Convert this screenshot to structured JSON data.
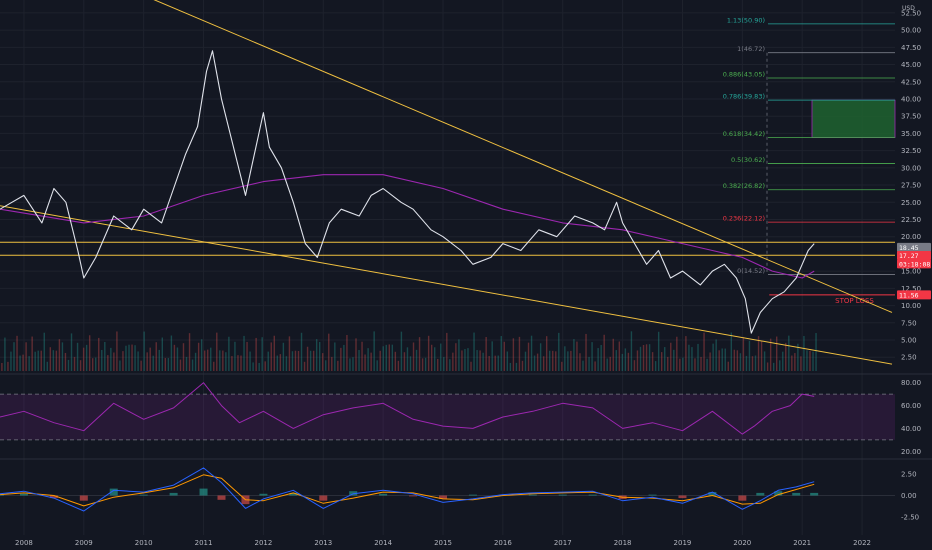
{
  "chart_data": [
    {
      "type": "line",
      "panel": "price",
      "y_unit": "USD",
      "x_ticks": [
        "2008",
        "2009",
        "2010",
        "2011",
        "2012",
        "2013",
        "2014",
        "2015",
        "2016",
        "2017",
        "2018",
        "2019",
        "2020",
        "2021",
        "2022"
      ],
      "y_ticks": [
        "52.50",
        "50.00",
        "47.50",
        "45.00",
        "42.50",
        "40.00",
        "37.50",
        "35.00",
        "32.50",
        "30.00",
        "27.50",
        "25.00",
        "22.50",
        "20.00",
        "15.00",
        "12.50",
        "10.00",
        "7.50",
        "5.00",
        "2.50"
      ],
      "ylim": [
        0.5,
        53.5
      ],
      "series": [
        {
          "values_x": [
            2007.6,
            2008.0,
            2008.3,
            2008.5,
            2008.7,
            2008.9,
            2009.0,
            2009.2,
            2009.5,
            2009.8,
            2010.0,
            2010.3,
            2010.5,
            2010.7,
            2010.9,
            2011.05,
            2011.15,
            2011.3,
            2011.5,
            2011.7,
            2011.8,
            2012.0,
            2012.1,
            2012.3,
            2012.5,
            2012.7,
            2012.9,
            2013.1,
            2013.3,
            2013.6,
            2013.8,
            2014.0,
            2014.3,
            2014.5,
            2014.8,
            2015.0,
            2015.3,
            2015.5,
            2015.8,
            2016.0,
            2016.3,
            2016.6,
            2016.9,
            2017.2,
            2017.5,
            2017.7,
            2017.9,
            2018.0,
            2018.2,
            2018.4,
            2018.6,
            2018.8,
            2019.0,
            2019.3,
            2019.5,
            2019.7,
            2019.9,
            2020.05,
            2020.15,
            2020.3,
            2020.5,
            2020.7,
            2020.9,
            2021.0,
            2021.1,
            2021.2
          ],
          "values_y": [
            24,
            26,
            22,
            27,
            25,
            18,
            14,
            17,
            23,
            21,
            24,
            22,
            27,
            32,
            36,
            44,
            47,
            40,
            33,
            26,
            30,
            38,
            33,
            30,
            25,
            19,
            17,
            22,
            24,
            23,
            26,
            27,
            25,
            24,
            21,
            20,
            18,
            16,
            17,
            19,
            18,
            21,
            20,
            23,
            22,
            21,
            25,
            22,
            19,
            16,
            18,
            14,
            15,
            13,
            15,
            16,
            14,
            11,
            6,
            9,
            11,
            12,
            14,
            16,
            18,
            19
          ]
        },
        {
          "name": "MA200 (purple)",
          "values_x": [
            2007.6,
            2009.0,
            2010.0,
            2011.0,
            2012.0,
            2013.0,
            2014.0,
            2015.0,
            2016.0,
            2017.0,
            2018.0,
            2019.0,
            2019.5,
            2020.0,
            2020.5,
            2021.0,
            2021.2
          ],
          "values_y": [
            24,
            22,
            23,
            26,
            28,
            29,
            29,
            27,
            24,
            22,
            21,
            19,
            18,
            17,
            15,
            14,
            15
          ]
        }
      ],
      "trendlines": [
        {
          "from": [
            2009.2,
            58
          ],
          "to": [
            2022.5,
            9
          ]
        },
        {
          "from": [
            2007.6,
            24.5
          ],
          "to": [
            2022.5,
            1.5
          ]
        }
      ],
      "horizontal_lines": [
        19.2,
        17.3
      ],
      "fibonacci": [
        {
          "label": "1.13(50.90)",
          "value": 50.9,
          "color": "#26a69a"
        },
        {
          "label": "1(46.72)",
          "value": 46.72,
          "color": "#787b86"
        },
        {
          "label": "0.886(43.05)",
          "value": 43.05,
          "color": "#4caf50"
        },
        {
          "label": "0.786(39.83)",
          "value": 39.83,
          "color": "#26a69a"
        },
        {
          "label": "0.618(34.42)",
          "value": 34.42,
          "color": "#4caf50"
        },
        {
          "label": "0.5(30.62)",
          "value": 30.62,
          "color": "#4caf50"
        },
        {
          "label": "0.382(26.82)",
          "value": 26.82,
          "color": "#4caf50"
        },
        {
          "label": "0.236(22.12)",
          "value": 22.12,
          "color": "#f23645"
        },
        {
          "label": "0(14.52)",
          "value": 14.52,
          "color": "#787b86"
        }
      ],
      "target_zone": {
        "from": 34.42,
        "to": 39.83,
        "color": "#1e5e2f"
      },
      "stop_loss": {
        "label": "STOP LOSS",
        "value": 11.56,
        "color": "#f23645"
      },
      "price_tags": [
        {
          "label": "18.45",
          "value": 18.45,
          "color": "#787b86"
        },
        {
          "label": "17.27",
          "value": 17.27,
          "color": "#f23645"
        },
        {
          "label": "03:18:08",
          "value": 16.05,
          "color": "#f23645"
        },
        {
          "label": "11.56",
          "value": 11.56,
          "color": "#f23645"
        }
      ]
    },
    {
      "type": "line",
      "panel": "rsi",
      "y_ticks": [
        "80.00",
        "60.00",
        "40.00",
        "20.00"
      ],
      "ylim": [
        15,
        85
      ],
      "band": [
        30,
        70
      ],
      "series": [
        {
          "name": "RSI",
          "values_x": [
            2007.6,
            2008.0,
            2008.5,
            2009.0,
            2009.5,
            2010.0,
            2010.5,
            2011.0,
            2011.3,
            2011.6,
            2012.0,
            2012.5,
            2013.0,
            2013.5,
            2014.0,
            2014.5,
            2015.0,
            2015.5,
            2016.0,
            2016.5,
            2017.0,
            2017.5,
            2018.0,
            2018.5,
            2019.0,
            2019.5,
            2020.0,
            2020.2,
            2020.5,
            2020.8,
            2021.0,
            2021.2
          ],
          "values_y": [
            50,
            55,
            45,
            38,
            62,
            48,
            58,
            80,
            60,
            45,
            55,
            40,
            52,
            58,
            62,
            48,
            42,
            40,
            50,
            55,
            62,
            58,
            40,
            45,
            38,
            55,
            35,
            42,
            55,
            60,
            70,
            68
          ]
        }
      ]
    },
    {
      "type": "line",
      "panel": "macd",
      "y_ticks": [
        "2.50",
        "0.00",
        "-2.50"
      ],
      "ylim": [
        -4,
        4
      ],
      "series": [
        {
          "name": "MACD",
          "values_x": [
            2007.6,
            2008.0,
            2008.5,
            2009.0,
            2009.5,
            2010.0,
            2010.5,
            2011.0,
            2011.3,
            2011.7,
            2012.0,
            2012.5,
            2013.0,
            2013.5,
            2014.0,
            2014.5,
            2015.0,
            2015.5,
            2016.0,
            2016.5,
            2017.0,
            2017.5,
            2018.0,
            2018.5,
            2019.0,
            2019.5,
            2020.0,
            2020.3,
            2020.6,
            2020.9,
            2021.2
          ],
          "values_y": [
            0.2,
            0.5,
            -0.3,
            -1.8,
            0.6,
            0.4,
            1.2,
            3.2,
            1.5,
            -1.5,
            -0.4,
            0.6,
            -1.5,
            0.2,
            0.6,
            0.2,
            -0.8,
            -0.4,
            0.1,
            0.3,
            0.4,
            0.5,
            -0.6,
            -0.2,
            -0.9,
            0.4,
            -1.6,
            -0.6,
            0.6,
            1.0,
            1.6
          ]
        },
        {
          "name": "Signal",
          "values_x": [
            2007.6,
            2008.0,
            2008.5,
            2009.0,
            2009.5,
            2010.0,
            2010.5,
            2011.0,
            2011.3,
            2011.7,
            2012.0,
            2012.5,
            2013.0,
            2013.5,
            2014.0,
            2014.5,
            2015.0,
            2015.5,
            2016.0,
            2016.5,
            2017.0,
            2017.5,
            2018.0,
            2018.5,
            2019.0,
            2019.5,
            2020.0,
            2020.3,
            2020.6,
            2020.9,
            2021.2
          ],
          "values_y": [
            0.1,
            0.3,
            0.0,
            -1.2,
            -0.2,
            0.3,
            0.9,
            2.4,
            2.0,
            -0.5,
            -0.6,
            0.3,
            -0.9,
            -0.3,
            0.4,
            0.3,
            -0.4,
            -0.5,
            0.0,
            0.2,
            0.3,
            0.4,
            -0.2,
            -0.3,
            -0.6,
            0.0,
            -1.0,
            -0.9,
            0.1,
            0.7,
            1.3
          ]
        }
      ]
    }
  ],
  "colors": {
    "background": "#131722",
    "grid": "#1e222d",
    "axis_text": "#b2b5be",
    "price": "#e0e3eb",
    "trend": "#f0c040",
    "rsi": "#9c27b0",
    "macd": "#2962ff",
    "signal": "#ff9800",
    "up": "#26a69a",
    "down": "#ef5350"
  }
}
